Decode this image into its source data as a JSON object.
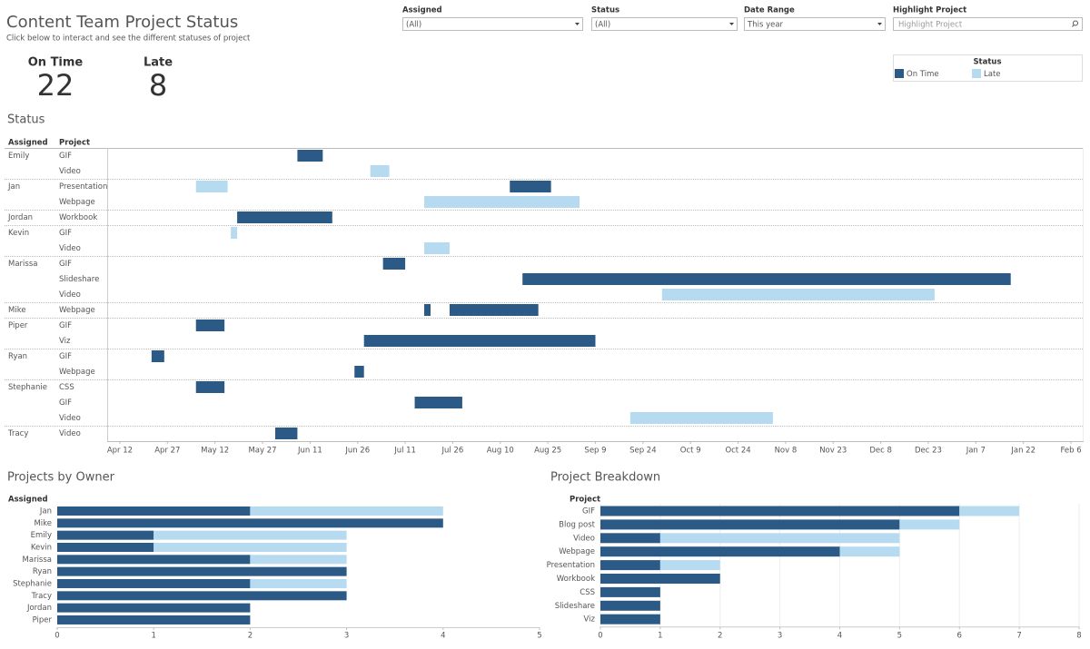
{
  "header": {
    "title": "Content Team Project Status",
    "subtitle": "Click below to interact and see the different statuses of project"
  },
  "filters": [
    {
      "label": "Assigned",
      "value": "(All)"
    },
    {
      "label": "Status",
      "value": "(All)"
    },
    {
      "label": "Date Range",
      "value": "This year"
    },
    {
      "label": "Highlight Project",
      "placeholder": "Highlight Project"
    }
  ],
  "kpis": [
    {
      "label": "On Time",
      "value": 22
    },
    {
      "label": "Late",
      "value": 8
    }
  ],
  "legend": {
    "title": "Status",
    "items": [
      {
        "name": "On Time",
        "color": "#2c5a87"
      },
      {
        "name": "Late",
        "color": "#b6dbf0"
      }
    ]
  },
  "chart_data": [
    {
      "type": "gantt",
      "title": "Status",
      "row_headers": [
        "Assigned",
        "Project"
      ],
      "groups": [
        {
          "assigned": "Emily",
          "projects": [
            {
              "name": "GIF",
              "bars": [
                {
                  "status": "On Time",
                  "start": 56,
                  "duration": 8
                }
              ]
            },
            {
              "name": "Video",
              "bars": [
                {
                  "status": "Late",
                  "start": 79,
                  "duration": 6
                }
              ]
            }
          ]
        },
        {
          "assigned": "Jan",
          "projects": [
            {
              "name": "Presentation",
              "bars": [
                {
                  "status": "Late",
                  "start": 24,
                  "duration": 10
                },
                {
                  "status": "On Time",
                  "start": 123,
                  "duration": 13
                }
              ]
            },
            {
              "name": "Webpage",
              "bars": [
                {
                  "status": "Late",
                  "start": 96,
                  "duration": 49
                }
              ]
            }
          ]
        },
        {
          "assigned": "Jordan",
          "projects": [
            {
              "name": "Workbook",
              "bars": [
                {
                  "status": "On Time",
                  "start": 37,
                  "duration": 30
                }
              ]
            }
          ]
        },
        {
          "assigned": "Kevin",
          "projects": [
            {
              "name": "GIF",
              "bars": [
                {
                  "status": "Late",
                  "start": 35,
                  "duration": 2
                }
              ]
            },
            {
              "name": "Video",
              "bars": [
                {
                  "status": "Late",
                  "start": 96,
                  "duration": 8
                }
              ]
            }
          ]
        },
        {
          "assigned": "Marissa",
          "projects": [
            {
              "name": "GIF",
              "bars": [
                {
                  "status": "On Time",
                  "start": 83,
                  "duration": 7
                }
              ]
            },
            {
              "name": "Slideshare",
              "bars": [
                {
                  "status": "On Time",
                  "start": 127,
                  "duration": 154
                }
              ]
            },
            {
              "name": "Video",
              "bars": [
                {
                  "status": "Late",
                  "start": 171,
                  "duration": 86
                }
              ]
            }
          ]
        },
        {
          "assigned": "Mike",
          "projects": [
            {
              "name": "Webpage",
              "bars": [
                {
                  "status": "On Time",
                  "start": 96,
                  "duration": 2
                },
                {
                  "status": "On Time",
                  "start": 104,
                  "duration": 28
                }
              ]
            }
          ]
        },
        {
          "assigned": "Piper",
          "projects": [
            {
              "name": "GIF",
              "bars": [
                {
                  "status": "On Time",
                  "start": 24,
                  "duration": 9
                }
              ]
            },
            {
              "name": "Viz",
              "bars": [
                {
                  "status": "On Time",
                  "start": 77,
                  "duration": 73
                }
              ]
            }
          ]
        },
        {
          "assigned": "Ryan",
          "projects": [
            {
              "name": "GIF",
              "bars": [
                {
                  "status": "On Time",
                  "start": 10,
                  "duration": 4
                }
              ]
            },
            {
              "name": "Webpage",
              "bars": [
                {
                  "status": "On Time",
                  "start": 74,
                  "duration": 3
                }
              ]
            }
          ]
        },
        {
          "assigned": "Stephanie",
          "projects": [
            {
              "name": "CSS",
              "bars": [
                {
                  "status": "On Time",
                  "start": 24,
                  "duration": 9
                }
              ]
            },
            {
              "name": "GIF",
              "bars": [
                {
                  "status": "On Time",
                  "start": 93,
                  "duration": 15
                }
              ]
            },
            {
              "name": "Video",
              "bars": [
                {
                  "status": "Late",
                  "start": 161,
                  "duration": 45
                }
              ]
            }
          ]
        },
        {
          "assigned": "Tracy",
          "projects": [
            {
              "name": "Video",
              "bars": [
                {
                  "status": "On Time",
                  "start": 49,
                  "duration": 7
                }
              ]
            }
          ]
        }
      ],
      "xlim": [
        -4,
        304
      ],
      "xticks": [
        {
          "value": 0,
          "label": "Apr 12"
        },
        {
          "value": 15,
          "label": "Apr 27"
        },
        {
          "value": 30,
          "label": "May 12"
        },
        {
          "value": 45,
          "label": "May 27"
        },
        {
          "value": 60,
          "label": "Jun 11"
        },
        {
          "value": 75,
          "label": "Jun 26"
        },
        {
          "value": 90,
          "label": "Jul 11"
        },
        {
          "value": 105,
          "label": "Jul 26"
        },
        {
          "value": 120,
          "label": "Aug 10"
        },
        {
          "value": 135,
          "label": "Aug 25"
        },
        {
          "value": 150,
          "label": "Sep 9"
        },
        {
          "value": 165,
          "label": "Sep 24"
        },
        {
          "value": 180,
          "label": "Oct 9"
        },
        {
          "value": 195,
          "label": "Oct 24"
        },
        {
          "value": 210,
          "label": "Nov 8"
        },
        {
          "value": 225,
          "label": "Nov 23"
        },
        {
          "value": 240,
          "label": "Dec 8"
        },
        {
          "value": 255,
          "label": "Dec 23"
        },
        {
          "value": 270,
          "label": "Jan 7"
        },
        {
          "value": 285,
          "label": "Jan 22"
        },
        {
          "value": 300,
          "label": "Feb 6"
        }
      ]
    },
    {
      "type": "stacked-bar-h",
      "title": "Projects by Owner",
      "axis_title": "Assigned",
      "categories": [
        "Jan",
        "Mike",
        "Emily",
        "Kevin",
        "Marissa",
        "Ryan",
        "Stephanie",
        "Tracy",
        "Jordan",
        "Piper"
      ],
      "series": [
        {
          "name": "On Time",
          "color": "#2c5a87",
          "values": [
            2,
            4,
            1,
            1,
            2,
            3,
            2,
            3,
            2,
            2
          ]
        },
        {
          "name": "Late",
          "color": "#b6dbf0",
          "values": [
            2,
            0,
            2,
            2,
            1,
            0,
            1,
            0,
            0,
            0
          ]
        }
      ],
      "xlim": [
        0,
        5
      ],
      "xticks": [
        0,
        1,
        2,
        3,
        4,
        5
      ],
      "grid": false
    },
    {
      "type": "stacked-bar-h",
      "title": "Project Breakdown",
      "axis_title": "Project",
      "categories": [
        "GIF",
        "Blog post",
        "Video",
        "Webpage",
        "Presentation",
        "Workbook",
        "CSS",
        "Slideshare",
        "Viz"
      ],
      "series": [
        {
          "name": "On Time",
          "color": "#2c5a87",
          "values": [
            6,
            5,
            1,
            4,
            1,
            2,
            1,
            1,
            1
          ]
        },
        {
          "name": "Late",
          "color": "#b6dbf0",
          "values": [
            1,
            1,
            4,
            1,
            1,
            0,
            0,
            0,
            0
          ]
        }
      ],
      "xlim": [
        0,
        8
      ],
      "xticks": [
        0,
        1,
        2,
        3,
        4,
        5,
        6,
        7,
        8
      ],
      "grid": true
    }
  ]
}
